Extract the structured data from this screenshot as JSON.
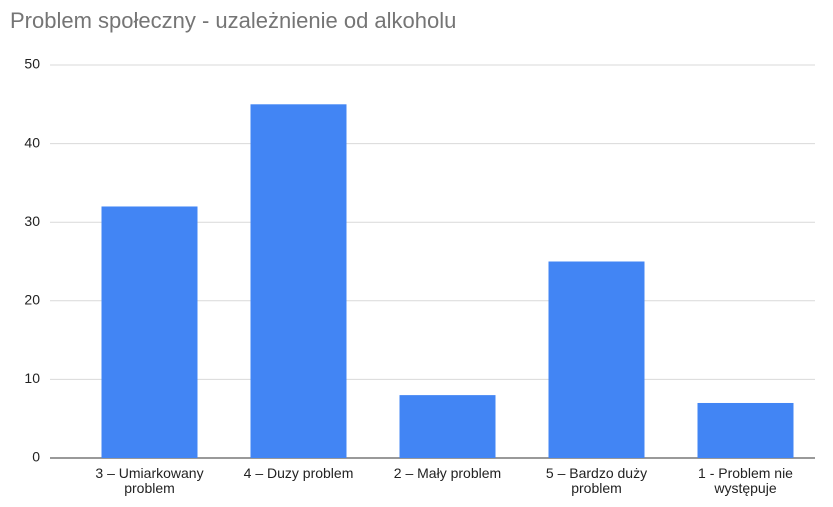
{
  "chart_data": {
    "type": "bar",
    "title": "Problem społeczny - uzależnienie od alkoholu",
    "categories": [
      "3 – Umiarkowany problem",
      "4 – Duzy problem",
      "2 – Mały problem",
      "5 – Bardzo duży problem",
      "1 - Problem nie występuje"
    ],
    "values": [
      32,
      45,
      8,
      25,
      7
    ],
    "color": "#4285f4",
    "ylim": [
      0,
      50
    ],
    "yticks": [
      0,
      10,
      20,
      30,
      40,
      50
    ],
    "grid": true
  }
}
